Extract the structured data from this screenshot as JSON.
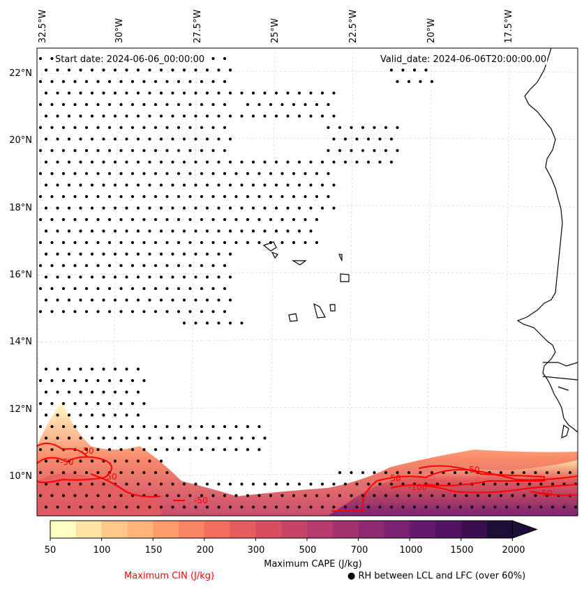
{
  "map": {
    "title_left": "Start date: 2024-06-06_00:00:00",
    "title_right": "Valid_date: 2024-06-06T20:00:00.00",
    "lon_labels": [
      "32.5°W",
      "30°W",
      "27.5°W",
      "25°W",
      "22.5°W",
      "20°W",
      "17.5°W"
    ],
    "lat_labels": [
      "22°N",
      "20°N",
      "18°N",
      "16°N",
      "14°N",
      "12°N",
      "10°N"
    ],
    "extent": {
      "lon_min": -33,
      "lon_max": -15.5,
      "lat_min": 9,
      "lat_max": 22.7
    },
    "cin_contour_labels": [
      "-50",
      "-50",
      "-50",
      "-50",
      "-100",
      "-50",
      "-50",
      "-50"
    ]
  },
  "colorbar": {
    "title": "Maximum CAPE (J/kg)",
    "ticks": [
      "50",
      "100",
      "150",
      "200",
      "300",
      "500",
      "700",
      "1000",
      "1500",
      "2000"
    ],
    "colors": [
      "#fffdbf",
      "#fee3a2",
      "#fec98a",
      "#feb378",
      "#fd9c6b",
      "#f98462",
      "#f36e5c",
      "#e55c5d",
      "#d84f62",
      "#c74466",
      "#b53c6c",
      "#a3336f",
      "#8f2a72",
      "#7b2272",
      "#651a70",
      "#511364",
      "#3c0f4f",
      "#1f0c37"
    ]
  },
  "legend": {
    "cin_label": "Maximum CIN (J/kg)",
    "rh_label": "● RH between LCL and LFC (over 60%)"
  },
  "colors": {
    "cin": "#ff0000",
    "coast": "#000000",
    "grid": "#cccccc"
  }
}
